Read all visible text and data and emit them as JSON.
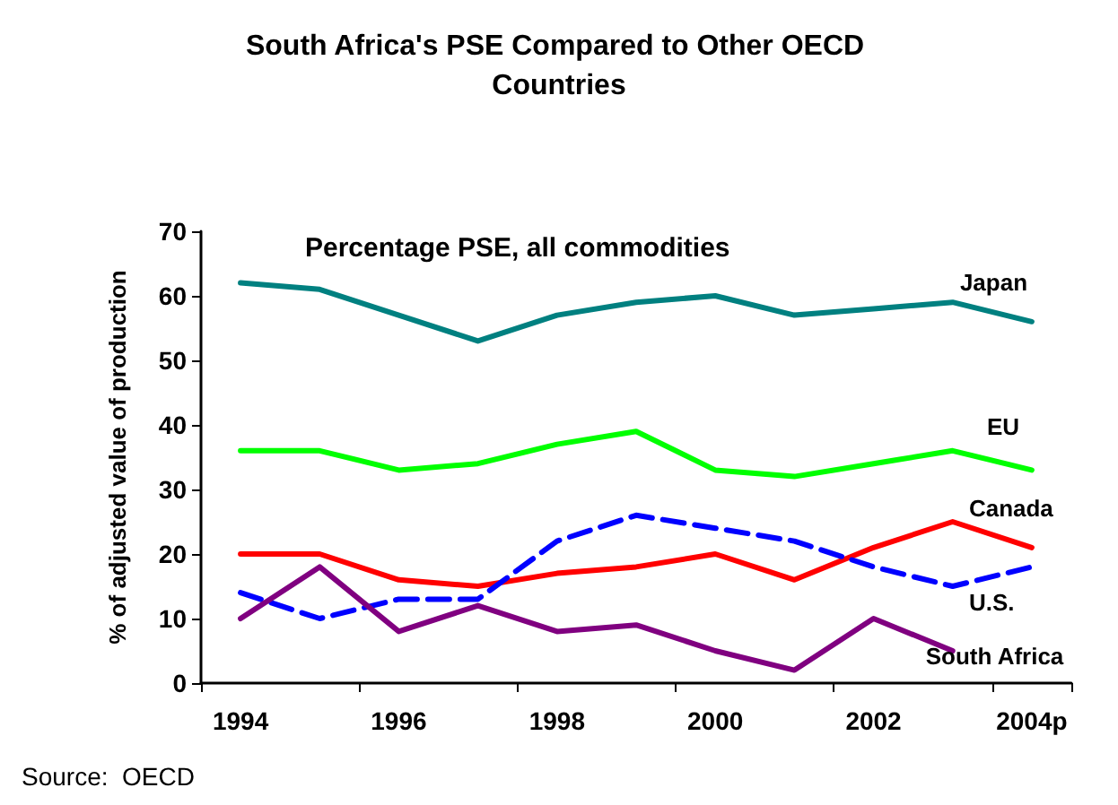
{
  "chart_data": {
    "type": "line",
    "title": "South Africa's PSE Compared to Other OECD Countries",
    "subtitle": "Percentage PSE, all commodities",
    "ylabel": "% of adjusted value of production",
    "annotations": [
      "Source:  OECD"
    ],
    "categories": [
      "1994",
      null,
      "1996",
      null,
      "1998",
      null,
      "2000",
      null,
      "2002",
      null,
      "2004p"
    ],
    "ylim": [
      0,
      70
    ],
    "yticks": [
      0,
      10,
      20,
      30,
      40,
      50,
      60,
      70
    ],
    "grid": false,
    "legend": false,
    "marker": "none",
    "series": [
      {
        "name": "Japan",
        "color": "#008080",
        "line_style": "solid",
        "values": [
          62,
          61,
          57,
          53,
          57,
          59,
          60,
          57,
          58,
          59,
          56
        ]
      },
      {
        "name": "EU",
        "color": "#00ff00",
        "line_style": "solid",
        "values": [
          36,
          36,
          33,
          34,
          37,
          39,
          33,
          32,
          34,
          36,
          33
        ]
      },
      {
        "name": "Canada",
        "color": "#ff0000",
        "line_style": "solid",
        "values": [
          20,
          20,
          16,
          15,
          17,
          18,
          20,
          16,
          21,
          25,
          21
        ]
      },
      {
        "name": "U.S.",
        "color": "#0000ff",
        "line_style": "dashed",
        "values": [
          14,
          10,
          13,
          13,
          22,
          26,
          24,
          22,
          18,
          15,
          18
        ]
      },
      {
        "name": "South Africa",
        "color": "#800080",
        "line_style": "solid",
        "values": [
          10,
          18,
          8,
          12,
          8,
          9,
          5,
          2,
          10,
          5,
          null
        ]
      }
    ]
  }
}
